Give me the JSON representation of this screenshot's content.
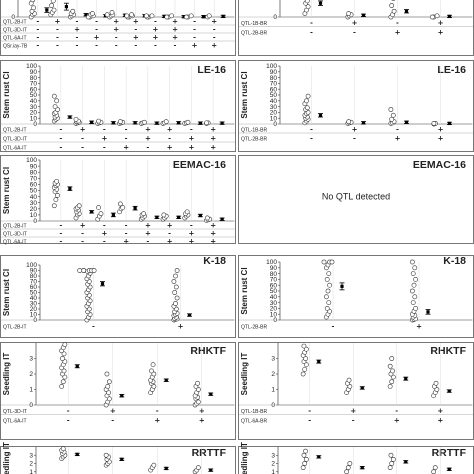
{
  "chart_data": [
    {
      "type": "scatter",
      "title": "",
      "ylabel": "",
      "ylim": [
        0,
        20
      ],
      "yticks": [
        0
      ],
      "qtl_rows": [
        "QTL-2B-IT",
        "QTL-3D-IT",
        "QTL-6A-IT",
        "QSr.iay-7B"
      ],
      "groups": [
        {
          "signs": [
            "-",
            "-",
            "-",
            "-"
          ],
          "values": [
            0,
            2,
            3,
            5,
            8,
            12,
            15
          ],
          "mean": 6,
          "err": 2
        },
        {
          "signs": [
            "+",
            "-",
            "-",
            "-"
          ],
          "values": [
            2,
            4,
            6,
            10,
            14,
            18
          ],
          "mean": 9,
          "err": 3
        },
        {
          "signs": [
            "-",
            "+",
            "-",
            "-"
          ],
          "values": [
            0,
            1,
            2,
            3,
            5
          ],
          "mean": 2,
          "err": 1
        },
        {
          "signs": [
            "-",
            "-",
            "+",
            "-"
          ],
          "values": [
            0,
            0,
            1,
            2,
            3
          ],
          "mean": 1,
          "err": 0.5
        },
        {
          "signs": [
            "+",
            "+",
            "-",
            "-"
          ],
          "values": [
            0,
            1,
            2,
            2,
            4
          ],
          "mean": 1.5,
          "err": 0.5
        },
        {
          "signs": [
            "+",
            "-",
            "+",
            "-"
          ],
          "values": [
            0,
            0,
            1,
            1,
            2
          ],
          "mean": 1,
          "err": 0.3
        },
        {
          "signs": [
            "-",
            "+",
            "+",
            "-"
          ],
          "values": [
            0,
            0,
            1,
            1
          ],
          "mean": 0.5,
          "err": 0.2
        },
        {
          "signs": [
            "+",
            "+",
            "+",
            "-"
          ],
          "values": [
            0,
            0,
            1
          ],
          "mean": 0.3,
          "err": 0.1
        },
        {
          "signs": [
            "-",
            "-",
            "-",
            "+"
          ],
          "values": [
            0,
            0,
            1
          ],
          "mean": 0.3,
          "err": 0.1
        },
        {
          "signs": [
            "+",
            "-",
            "-",
            "+"
          ],
          "values": [
            0,
            1
          ],
          "mean": 0.5,
          "err": 0.1
        }
      ]
    },
    {
      "type": "scatter",
      "title": "",
      "ylabel": "",
      "ylim": [
        0,
        20
      ],
      "yticks": [
        0
      ],
      "qtl_rows": [
        "QTL-1B-BR",
        "QTL-2B-BR"
      ],
      "groups": [
        {
          "signs": [
            "-",
            "-"
          ],
          "values": [
            3,
            6,
            9,
            12,
            14,
            17,
            19
          ],
          "mean": 12,
          "err": 2
        },
        {
          "signs": [
            "+",
            "-"
          ],
          "values": [
            0,
            1,
            2,
            3
          ],
          "mean": 1.5,
          "err": 0.5
        },
        {
          "signs": [
            "-",
            "+"
          ],
          "values": [
            0,
            2,
            5,
            10,
            16
          ],
          "mean": 5,
          "err": 1.5
        },
        {
          "signs": [
            "+",
            "+"
          ],
          "values": [
            0,
            0,
            1
          ],
          "mean": 0.5,
          "err": 0.2
        }
      ]
    },
    {
      "type": "scatter",
      "title": "LE-16",
      "ylabel": "Stem rust CI",
      "ylim": [
        0,
        100
      ],
      "yticks": [
        0,
        10,
        20,
        30,
        40,
        50,
        60,
        70,
        80,
        90,
        100
      ],
      "qtl_rows": [
        "QTL-2B-IT",
        "QTL-3D-IT",
        "QTL-6A-IT"
      ],
      "groups": [
        {
          "signs": [
            "-",
            "-",
            "-"
          ],
          "values": [
            5,
            8,
            10,
            12,
            15,
            18,
            20,
            25,
            30,
            40,
            48
          ],
          "mean": 12,
          "err": 2
        },
        {
          "signs": [
            "+",
            "-",
            "-"
          ],
          "values": [
            1,
            2,
            3,
            4,
            5,
            8
          ],
          "mean": 3,
          "err": 1
        },
        {
          "signs": [
            "-",
            "+",
            "-"
          ],
          "values": [
            1,
            2,
            3,
            5
          ],
          "mean": 2,
          "err": 0.8
        },
        {
          "signs": [
            "-",
            "-",
            "+"
          ],
          "values": [
            1,
            2,
            3,
            4
          ],
          "mean": 2,
          "err": 0.8
        },
        {
          "signs": [
            "+",
            "+",
            "-"
          ],
          "values": [
            1,
            2,
            3
          ],
          "mean": 1.5,
          "err": 0.5
        },
        {
          "signs": [
            "+",
            "-",
            "+"
          ],
          "values": [
            1,
            2,
            4
          ],
          "mean": 2,
          "err": 0.6
        },
        {
          "signs": [
            "-",
            "+",
            "+"
          ],
          "values": [
            1,
            2,
            3
          ],
          "mean": 1.5,
          "err": 0.5
        },
        {
          "signs": [
            "+",
            "+",
            "+"
          ],
          "values": [
            1,
            2,
            2
          ],
          "mean": 1.5,
          "err": 0.4
        }
      ]
    },
    {
      "type": "scatter",
      "title": "LE-16",
      "ylabel": "Stem rust CI",
      "ylim": [
        0,
        100
      ],
      "yticks": [
        0,
        10,
        20,
        30,
        40,
        50,
        60,
        70,
        80,
        90,
        100
      ],
      "qtl_rows": [
        "QTL-1B-BR",
        "QTL-2B-BR"
      ],
      "groups": [
        {
          "signs": [
            "-",
            "-"
          ],
          "values": [
            2,
            5,
            8,
            10,
            12,
            15,
            18,
            20,
            25,
            28,
            35,
            40,
            48
          ],
          "mean": 15,
          "err": 3
        },
        {
          "signs": [
            "+",
            "-"
          ],
          "values": [
            1,
            2,
            3,
            4
          ],
          "mean": 2,
          "err": 0.8
        },
        {
          "signs": [
            "-",
            "+"
          ],
          "values": [
            1,
            2,
            4,
            8,
            15,
            25
          ],
          "mean": 3,
          "err": 1
        },
        {
          "signs": [
            "+",
            "+"
          ],
          "values": [
            0,
            1,
            1
          ],
          "mean": 1,
          "err": 0.3
        }
      ]
    },
    {
      "type": "scatter",
      "title": "EEMAC-16",
      "ylabel": "Stem rust CI",
      "ylim": [
        0,
        100
      ],
      "yticks": [
        0,
        10,
        20,
        30,
        40,
        50,
        60,
        70,
        80,
        90,
        100
      ],
      "qtl_rows": [
        "QTL-2B-IT",
        "QTL-3D-IT",
        "QTL-6A-IT"
      ],
      "groups": [
        {
          "signs": [
            "-",
            "-",
            "-"
          ],
          "values": [
            25,
            35,
            42,
            48,
            52,
            55,
            58,
            60,
            62,
            65
          ],
          "mean": 53,
          "err": 3
        },
        {
          "signs": [
            "+",
            "-",
            "-"
          ],
          "values": [
            5,
            10,
            12,
            15,
            18,
            20,
            22,
            25
          ],
          "mean": 15,
          "err": 2
        },
        {
          "signs": [
            "-",
            "+",
            "-"
          ],
          "values": [
            3,
            8,
            12,
            22
          ],
          "mean": 10,
          "err": 3
        },
        {
          "signs": [
            "-",
            "-",
            "+"
          ],
          "values": [
            15,
            20,
            22,
            28
          ],
          "mean": 21,
          "err": 3
        },
        {
          "signs": [
            "+",
            "+",
            "-"
          ],
          "values": [
            3,
            5,
            8,
            10,
            12
          ],
          "mean": 6,
          "err": 1.5
        },
        {
          "signs": [
            "+",
            "-",
            "+"
          ],
          "values": [
            3,
            5,
            8,
            10
          ],
          "mean": 6,
          "err": 1.5
        },
        {
          "signs": [
            "-",
            "+",
            "+"
          ],
          "values": [
            5,
            8,
            10,
            12,
            15
          ],
          "mean": 9,
          "err": 2
        },
        {
          "signs": [
            "+",
            "+",
            "+"
          ],
          "values": [
            1,
            2,
            3,
            5
          ],
          "mean": 3,
          "err": 1
        }
      ]
    },
    {
      "type": "scatter",
      "title": "EEMAC-16",
      "ylabel": "",
      "note": "No QTL detected",
      "groups": []
    },
    {
      "type": "scatter",
      "title": "K-18",
      "ylabel": "Stem rust CI",
      "ylim": [
        0,
        100
      ],
      "yticks": [
        0,
        10,
        20,
        30,
        40,
        50,
        60,
        70,
        80,
        90,
        100
      ],
      "qtl_rows": [
        "QTL-2B-IT"
      ],
      "groups": [
        {
          "signs": [
            "-"
          ],
          "values": [
            0,
            5,
            10,
            15,
            20,
            25,
            30,
            35,
            40,
            45,
            50,
            55,
            60,
            65,
            70,
            75,
            80,
            85,
            88,
            90,
            90,
            90,
            90,
            90,
            90
          ],
          "mean": 66,
          "err": 4
        },
        {
          "signs": [
            "+"
          ],
          "values": [
            0,
            1,
            2,
            3,
            5,
            8,
            10,
            12,
            15,
            20,
            25,
            30,
            40,
            50,
            60,
            70,
            80,
            90
          ],
          "mean": 9,
          "err": 1
        }
      ]
    },
    {
      "type": "scatter",
      "title": "K-18",
      "ylabel": "Stem rust CI",
      "ylim": [
        0,
        100
      ],
      "yticks": [
        0,
        10,
        20,
        30,
        40,
        50,
        60,
        70,
        80,
        90,
        100
      ],
      "qtl_rows": [
        "QTL-2B-BR"
      ],
      "groups": [
        {
          "signs": [
            "-"
          ],
          "values": [
            5,
            10,
            15,
            20,
            30,
            40,
            50,
            60,
            70,
            80,
            90,
            95,
            100,
            100,
            100
          ],
          "mean": 58,
          "err": 6
        },
        {
          "signs": [
            "+"
          ],
          "values": [
            0,
            1,
            2,
            5,
            8,
            10,
            15,
            20,
            30,
            40,
            50,
            60,
            70,
            80,
            90,
            100
          ],
          "mean": 14,
          "err": 4
        }
      ]
    },
    {
      "type": "scatter",
      "title": "RHKTF",
      "ylabel": "Seedling IT",
      "ylim": [
        0,
        4
      ],
      "yticks": [
        0,
        1,
        2,
        3,
        4
      ],
      "qtl_rows": [
        "QTL-3D-IT",
        "QTL-6A-IT"
      ],
      "groups": [
        {
          "signs": [
            "-",
            "-"
          ],
          "values": [
            1.2,
            1.5,
            1.8,
            2.0,
            2.2,
            2.4,
            2.6,
            2.8,
            3.0,
            3.3,
            3.5,
            3.7,
            3.9
          ],
          "mean": 2.5,
          "err": 0.1
        },
        {
          "signs": [
            "+",
            "-"
          ],
          "values": [
            0,
            0.2,
            0.4,
            0.6,
            0.8,
            1.0,
            1.2,
            1.5,
            2.0
          ],
          "mean": 0.6,
          "err": 0.08
        },
        {
          "signs": [
            "-",
            "+"
          ],
          "values": [
            0.8,
            1.0,
            1.2,
            1.4,
            1.5,
            1.6,
            1.8,
            2.0,
            2.2,
            2.6
          ],
          "mean": 1.6,
          "err": 0.08
        },
        {
          "signs": [
            "+",
            "+"
          ],
          "values": [
            0,
            0.1,
            0.2,
            0.4,
            0.5,
            0.6,
            0.8,
            1.0,
            1.2,
            1.4
          ],
          "mean": 0.7,
          "err": 0.06
        }
      ]
    },
    {
      "type": "scatter",
      "title": "RHKTF",
      "ylabel": "Seedling IT",
      "ylim": [
        0,
        4
      ],
      "yticks": [
        0,
        1,
        2,
        3,
        4
      ],
      "qtl_rows": [
        "QTL-1B-BR",
        "QTL-6A-BR"
      ],
      "groups": [
        {
          "signs": [
            "-",
            "-"
          ],
          "values": [
            2.0,
            2.3,
            2.6,
            2.8,
            3.0,
            3.2,
            3.4,
            3.6,
            3.8,
            4.0
          ],
          "mean": 2.8,
          "err": 0.1
        },
        {
          "signs": [
            "+",
            "-"
          ],
          "values": [
            0.8,
            1.0,
            1.2,
            1.4,
            1.6
          ],
          "mean": 1.1,
          "err": 0.08
        },
        {
          "signs": [
            "-",
            "+"
          ],
          "values": [
            1.2,
            1.5,
            1.8,
            2.0,
            2.2,
            2.5,
            3.0
          ],
          "mean": 1.7,
          "err": 0.1
        },
        {
          "signs": [
            "+",
            "+"
          ],
          "values": [
            0.6,
            0.8,
            1.0,
            1.2,
            1.4
          ],
          "mean": 0.9,
          "err": 0.06
        }
      ]
    },
    {
      "type": "scatter",
      "title": "RRTTF",
      "ylabel": "Seedling IT",
      "ylim": [
        0,
        4
      ],
      "yticks": [
        1,
        2,
        3,
        4
      ],
      "groups": [
        {
          "values": [
            2.6,
            2.8,
            3.0,
            3.2,
            3.4,
            3.6,
            3.8
          ],
          "mean": 3.1,
          "err": 0.08
        },
        {
          "values": [
            1.8,
            2.0,
            2.2,
            2.5,
            2.8,
            3.0
          ],
          "mean": 2.5,
          "err": 0.08
        },
        {
          "values": [
            1.2,
            1.5,
            1.8
          ],
          "mean": 1.4,
          "err": 0.06
        },
        {
          "values": [
            1.0,
            1.2,
            1.5
          ],
          "mean": 1.2,
          "err": 0.06
        }
      ]
    },
    {
      "type": "scatter",
      "title": "RRTTF",
      "ylabel": "Seedling IT",
      "ylim": [
        0,
        4
      ],
      "yticks": [
        1,
        2,
        3,
        4
      ],
      "groups": [
        {
          "values": [
            1.5,
            2.0,
            2.5,
            3.0,
            3.5,
            4.0
          ],
          "mean": 2.8,
          "err": 0.1
        },
        {
          "values": [
            1.0,
            1.5,
            2.0
          ],
          "mean": 1.5,
          "err": 0.08
        },
        {
          "values": [
            1.5,
            2.0,
            2.5,
            3.0
          ],
          "mean": 2.2,
          "err": 0.1
        },
        {
          "values": [
            1.0,
            1.5
          ],
          "mean": 1.3,
          "err": 0.06
        }
      ]
    }
  ]
}
